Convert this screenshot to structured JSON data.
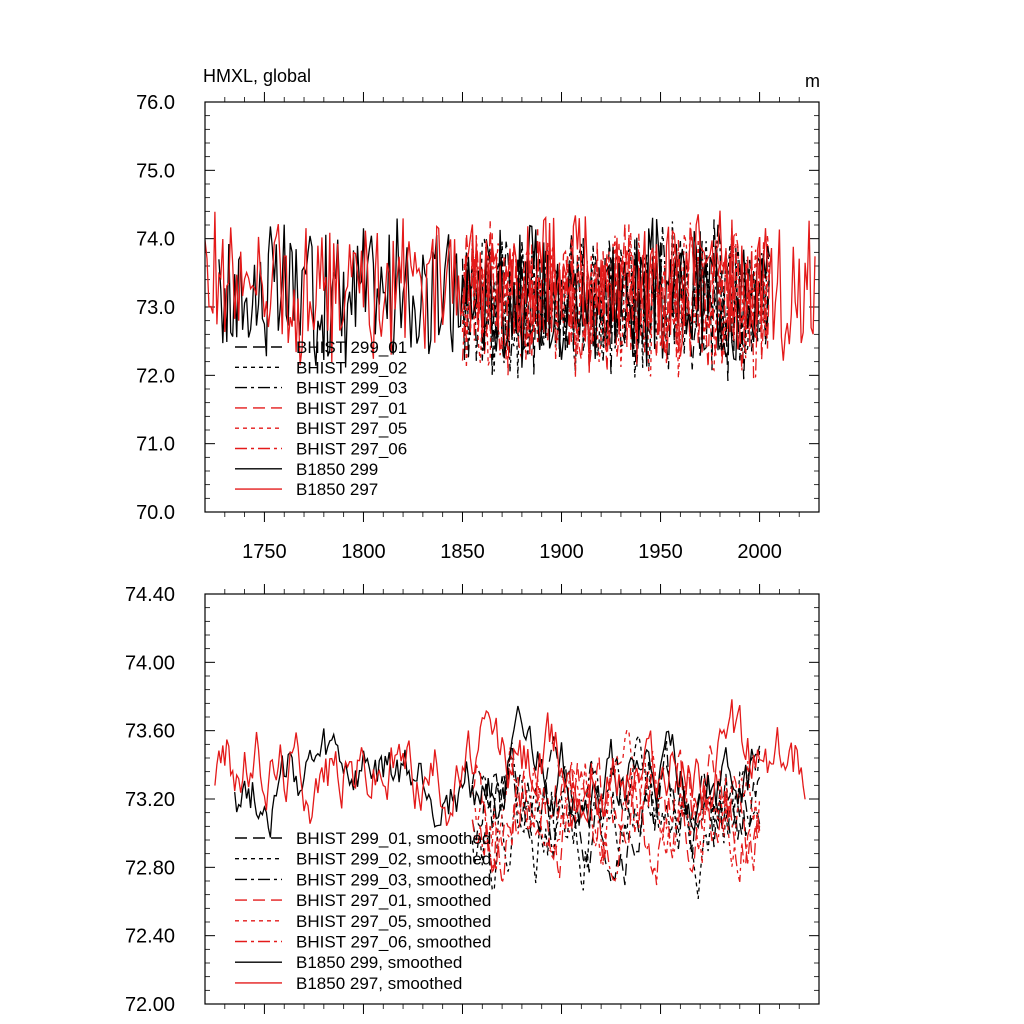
{
  "chart_data": [
    {
      "type": "line",
      "title": "HMXL, global",
      "units": "m",
      "xlim": [
        1720,
        2030
      ],
      "ylim": [
        70.0,
        76.0
      ],
      "xticks": [
        1750,
        1800,
        1850,
        1900,
        1950,
        2000
      ],
      "xtick_labels": [
        "1750",
        "1800",
        "1850",
        "1900",
        "1950",
        "2000"
      ],
      "yticks": [
        70.0,
        71.0,
        72.0,
        73.0,
        74.0,
        75.0,
        76.0
      ],
      "ytick_labels": [
        "70.0",
        "71.0",
        "72.0",
        "73.0",
        "74.0",
        "75.0",
        "76.0"
      ],
      "legend_position": "lower-left",
      "series": [
        {
          "name": "BHIST 299_01",
          "color": "#000000",
          "dash": "12,6",
          "x_range": [
            1850,
            2005
          ],
          "base": 73.1,
          "amp": 0.9,
          "seed": 11
        },
        {
          "name": "BHIST 299_02",
          "color": "#000000",
          "dash": "4,4",
          "x_range": [
            1850,
            2005
          ],
          "base": 73.1,
          "amp": 0.9,
          "seed": 12
        },
        {
          "name": "BHIST 299_03",
          "color": "#000000",
          "dash": "12,4,3,4",
          "x_range": [
            1850,
            2005
          ],
          "base": 73.1,
          "amp": 0.9,
          "seed": 13
        },
        {
          "name": "BHIST 297_01",
          "color": "#e41a1a",
          "dash": "12,6",
          "x_range": [
            1850,
            2005
          ],
          "base": 73.1,
          "amp": 0.9,
          "seed": 14
        },
        {
          "name": "BHIST 297_05",
          "color": "#e41a1a",
          "dash": "4,4",
          "x_range": [
            1850,
            2005
          ],
          "base": 73.1,
          "amp": 0.9,
          "seed": 15
        },
        {
          "name": "BHIST 297_06",
          "color": "#e41a1a",
          "dash": "12,4,3,4",
          "x_range": [
            1850,
            2005
          ],
          "base": 73.1,
          "amp": 0.9,
          "seed": 16
        },
        {
          "name": "B1850 299",
          "color": "#000000",
          "dash": "",
          "x_range": [
            1727,
            2005
          ],
          "base": 73.2,
          "amp": 0.9,
          "seed": 17
        },
        {
          "name": "B1850 297",
          "color": "#e41a1a",
          "dash": "",
          "x_range": [
            1720,
            2028
          ],
          "base": 73.3,
          "amp": 0.9,
          "seed": 18
        }
      ]
    },
    {
      "type": "line",
      "title": "",
      "xlim": [
        1720,
        2030
      ],
      "ylim": [
        72.0,
        74.4
      ],
      "xticks": [
        1750,
        1800,
        1850,
        1900,
        1950,
        2000
      ],
      "yticks": [
        72.0,
        72.4,
        72.8,
        73.2,
        73.6,
        74.0,
        74.4
      ],
      "ytick_labels": [
        "72.00",
        "72.40",
        "72.80",
        "73.20",
        "73.60",
        "74.00",
        "74.40"
      ],
      "legend_position": "lower-left",
      "series": [
        {
          "name": "BHIST 299_01, smoothed",
          "color": "#000000",
          "dash": "12,6",
          "x_range": [
            1855,
            2000
          ],
          "base": 73.15,
          "amp": 0.35,
          "seed": 21
        },
        {
          "name": "BHIST 299_02, smoothed",
          "color": "#000000",
          "dash": "4,4",
          "x_range": [
            1855,
            2000
          ],
          "base": 73.1,
          "amp": 0.4,
          "seed": 22
        },
        {
          "name": "BHIST 299_03, smoothed",
          "color": "#000000",
          "dash": "12,4,3,4",
          "x_range": [
            1855,
            2000
          ],
          "base": 73.15,
          "amp": 0.35,
          "seed": 23
        },
        {
          "name": "BHIST 297_01, smoothed",
          "color": "#e41a1a",
          "dash": "12,6",
          "x_range": [
            1855,
            2000
          ],
          "base": 73.15,
          "amp": 0.4,
          "seed": 24
        },
        {
          "name": "BHIST 297_05, smoothed",
          "color": "#e41a1a",
          "dash": "4,4",
          "x_range": [
            1855,
            2000
          ],
          "base": 73.2,
          "amp": 0.4,
          "seed": 25
        },
        {
          "name": "BHIST 297_06, smoothed",
          "color": "#e41a1a",
          "dash": "12,4,3,4",
          "x_range": [
            1855,
            2000
          ],
          "base": 73.1,
          "amp": 0.4,
          "seed": 26
        },
        {
          "name": "B1850 299, smoothed",
          "color": "#000000",
          "dash": "",
          "x_range": [
            1735,
            2000
          ],
          "base": 73.3,
          "amp": 0.3,
          "seed": 27
        },
        {
          "name": "B1850 297, smoothed",
          "color": "#e41a1a",
          "dash": "",
          "x_range": [
            1725,
            2023
          ],
          "base": 73.4,
          "amp": 0.35,
          "seed": 28
        }
      ]
    }
  ]
}
